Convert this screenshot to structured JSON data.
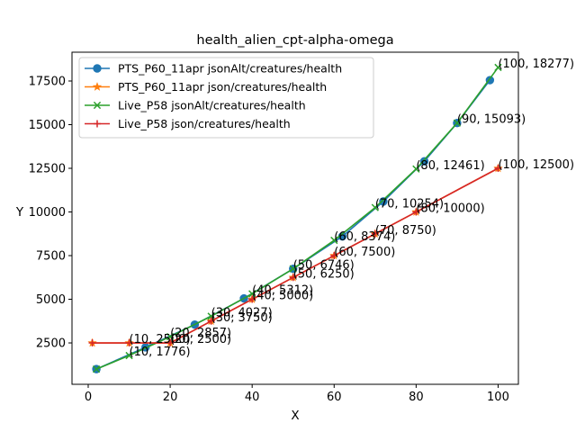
{
  "chart_data": {
    "type": "line",
    "title": "health_alien_cpt-alpha-omega",
    "xlabel": "X",
    "ylabel": "Y",
    "xlim": [
      -3.95,
      104.95
    ],
    "ylim": [
      130,
      19150
    ],
    "xticks": [
      0,
      20,
      40,
      60,
      80,
      100
    ],
    "yticks": [
      2500,
      5000,
      7500,
      10000,
      12500,
      15000,
      17500
    ],
    "xtick_labels": [
      "0",
      "20",
      "40",
      "60",
      "80",
      "100"
    ],
    "ytick_labels": [
      "2500",
      "5000",
      "7500",
      "10000",
      "12500",
      "15000",
      "17500"
    ],
    "legend_position": "upper-left",
    "grid": false,
    "series": [
      {
        "name": "PTS_P60_11apr jsonAlt/creatures/health",
        "color": "#1f77b4",
        "marker": "circle",
        "x": [
          2,
          14,
          26,
          38,
          50,
          62,
          72,
          82,
          90,
          98
        ],
        "y": [
          1000,
          2250,
          3550,
          5050,
          6746,
          8600,
          10600,
          12900,
          15093,
          17550
        ]
      },
      {
        "name": "PTS_P60_11apr json/creatures/health",
        "color": "#ff7f0e",
        "marker": "star",
        "x": [
          1,
          10,
          20,
          30,
          40,
          50,
          60,
          70,
          80,
          100
        ],
        "y": [
          2500,
          2500,
          2500,
          3750,
          5000,
          6250,
          7500,
          8750,
          10000,
          12500
        ]
      },
      {
        "name": "Live_P58 jsonAlt/creatures/health",
        "color": "#2ca02c",
        "marker": "x",
        "x": [
          2,
          10,
          20,
          30,
          40,
          50,
          60,
          70,
          80,
          90,
          100
        ],
        "y": [
          1000,
          1776,
          2857,
          4027,
          5312,
          6746,
          8374,
          10254,
          12461,
          15093,
          18277
        ]
      },
      {
        "name": "Live_P58 json/creatures/health",
        "color": "#d62728",
        "marker": "plus",
        "x": [
          1,
          10,
          20,
          30,
          40,
          50,
          60,
          70,
          80,
          100
        ],
        "y": [
          2500,
          2500,
          2500,
          3750,
          5000,
          6250,
          7500,
          8750,
          10000,
          12500
        ]
      }
    ],
    "annotations": [
      {
        "x": 10,
        "y": 1776,
        "text": "(10, 1776)"
      },
      {
        "x": 10,
        "y": 2500,
        "text": "(10, 2500)"
      },
      {
        "x": 20,
        "y": 2857,
        "text": "(20, 2857)"
      },
      {
        "x": 20,
        "y": 2500,
        "text": "(20, 2500)"
      },
      {
        "x": 30,
        "y": 4027,
        "text": "(30, 4027)"
      },
      {
        "x": 30,
        "y": 3750,
        "text": "(30, 3750)"
      },
      {
        "x": 40,
        "y": 5312,
        "text": "(40, 5312)"
      },
      {
        "x": 40,
        "y": 5000,
        "text": "(40, 5000)"
      },
      {
        "x": 50,
        "y": 6746,
        "text": "(50, 6746)"
      },
      {
        "x": 50,
        "y": 6250,
        "text": "(50, 6250)"
      },
      {
        "x": 60,
        "y": 8374,
        "text": "(60, 8374)"
      },
      {
        "x": 60,
        "y": 7500,
        "text": "(60, 7500)"
      },
      {
        "x": 70,
        "y": 10254,
        "text": "(70, 10254)"
      },
      {
        "x": 70,
        "y": 8750,
        "text": "(70, 8750)"
      },
      {
        "x": 80,
        "y": 12461,
        "text": "(80, 12461)"
      },
      {
        "x": 80,
        "y": 10000,
        "text": "(80, 10000)"
      },
      {
        "x": 90,
        "y": 15093,
        "text": "(90, 15093)"
      },
      {
        "x": 100,
        "y": 18277,
        "text": "(100, 18277)"
      },
      {
        "x": 100,
        "y": 12500,
        "text": "(100, 12500)"
      }
    ]
  }
}
